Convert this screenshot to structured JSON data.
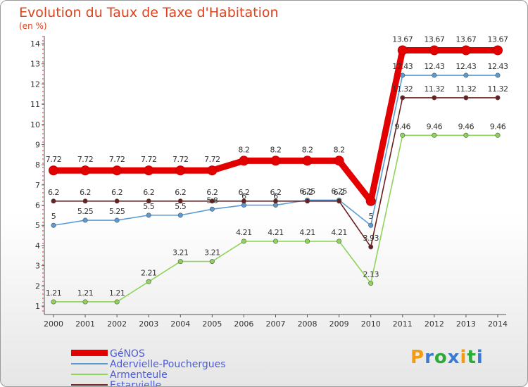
{
  "title": "Evolution du Taux de Taxe d'Habitation",
  "subtitle": "(en %)",
  "logo": {
    "parts": [
      "P",
      "r",
      "o",
      "x",
      "i",
      "t",
      "i"
    ],
    "colors": [
      "#f39c12",
      "#3a7bd5",
      "#2eaa3a",
      "#3a7bd5",
      "#f39c12",
      "#2eaa3a",
      "#3a7bd5"
    ]
  },
  "chart_data": {
    "type": "line",
    "title": "Evolution du Taux de Taxe d'Habitation",
    "subtitle": "(en %)",
    "x": [
      "2000",
      "2001",
      "2002",
      "2003",
      "2004",
      "2005",
      "2006",
      "2007",
      "2008",
      "2009",
      "2010",
      "2011",
      "2012",
      "2013",
      "2014"
    ],
    "ylim": [
      0.6,
      14.3
    ],
    "yticks": [
      1,
      2,
      3,
      4,
      5,
      6,
      7,
      8,
      9,
      10,
      11,
      12,
      13,
      14
    ],
    "grid": false,
    "legend_position": "bottom-left",
    "series": [
      {
        "name": "GéNOS",
        "color": "#e30000",
        "values": [
          7.72,
          7.72,
          7.72,
          7.72,
          7.72,
          7.72,
          8.2,
          8.2,
          8.2,
          8.2,
          6.2,
          13.67,
          13.67,
          13.67,
          13.67
        ],
        "labels": [
          "7.72",
          "7.72",
          "7.72",
          "7.72",
          "7.72",
          "7.72",
          "8.2",
          "8.2",
          "8.2",
          "8.2",
          "",
          "13.67",
          "13.67",
          "13.67",
          "13.67"
        ]
      },
      {
        "name": "Adervielle-Pouchergues",
        "color": "#5b9bd5",
        "values": [
          5,
          5.25,
          5.25,
          5.5,
          5.5,
          5.8,
          6,
          6,
          6.25,
          6.25,
          5,
          12.43,
          12.43,
          12.43,
          12.43
        ],
        "labels": [
          "5",
          "5.25",
          "5.25",
          "5.5",
          "5.5",
          "5.8",
          "6",
          "6",
          "6.25",
          "6.25",
          "5",
          "12.43",
          "12.43",
          "12.43",
          "12.43"
        ]
      },
      {
        "name": "Armenteule",
        "color": "#8fd45a",
        "values": [
          1.21,
          1.21,
          1.21,
          2.21,
          3.21,
          3.21,
          4.21,
          4.21,
          4.21,
          4.21,
          2.13,
          9.46,
          9.46,
          9.46,
          9.46
        ],
        "labels": [
          "1.21",
          "1.21",
          "1.21",
          "2.21",
          "3.21",
          "3.21",
          "4.21",
          "4.21",
          "4.21",
          "4.21",
          "2.13",
          "9.46",
          "9.46",
          "9.46",
          "9.46"
        ]
      },
      {
        "name": "Estarvielle",
        "color": "#6a1e1e",
        "values": [
          6.2,
          6.2,
          6.2,
          6.2,
          6.2,
          6.2,
          6.2,
          6.2,
          6.2,
          6.2,
          3.93,
          11.32,
          11.32,
          11.32,
          11.32
        ],
        "labels": [
          "6.2",
          "6.2",
          "6.2",
          "6.2",
          "6.2",
          "6.2",
          "6.2",
          "6.2",
          "6.2",
          "6.2",
          "3.93",
          "11.32",
          "11.32",
          "11.32",
          "11.32"
        ]
      }
    ]
  }
}
